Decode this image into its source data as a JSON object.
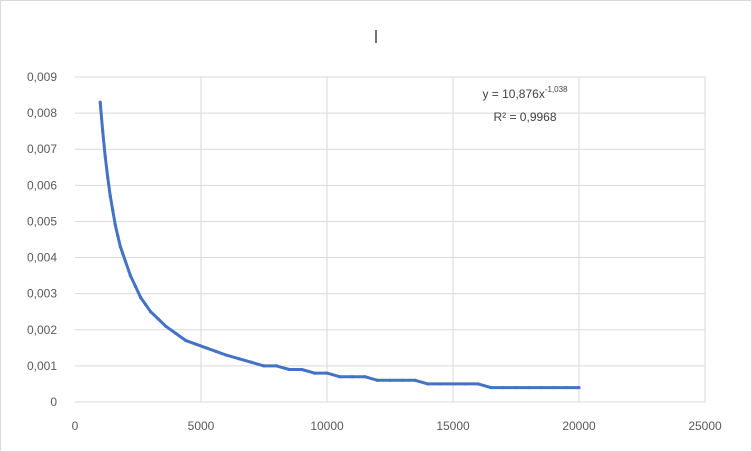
{
  "chart_data": {
    "type": "scatter",
    "title": "I",
    "xlabel": "",
    "ylabel": "",
    "xlim": [
      0,
      25000
    ],
    "ylim": [
      0,
      0.009
    ],
    "x_ticks": [
      "0",
      "5000",
      "10000",
      "15000",
      "20000",
      "25000"
    ],
    "y_ticks": [
      "0",
      "0,001",
      "0,002",
      "0,003",
      "0,004",
      "0,005",
      "0,006",
      "0,007",
      "0,008",
      "0,009"
    ],
    "grid": true,
    "legend": "none",
    "series_color": "#4472c4",
    "series": [
      {
        "x": [
          1000,
          1100,
          1200,
          1300,
          1400,
          1500,
          1600,
          1700,
          1800,
          1900,
          2000,
          2200,
          2400,
          2600,
          2800,
          3000,
          3300,
          3600,
          4000,
          4400,
          4800,
          5200,
          5600,
          6000,
          6500,
          7000,
          7500,
          8000,
          8500,
          9000,
          9500,
          10000,
          10500,
          11000,
          11500,
          12000,
          12500,
          13000,
          13500,
          14000,
          14500,
          15000,
          15500,
          16000,
          16500,
          17000,
          17500,
          18000,
          18500,
          19000,
          19500,
          20000
        ],
        "y": [
          0.0083,
          0.0075,
          0.0068,
          0.0062,
          0.0057,
          0.0053,
          0.0049,
          0.0046,
          0.0043,
          0.0041,
          0.0039,
          0.0035,
          0.0032,
          0.0029,
          0.0027,
          0.0025,
          0.0023,
          0.0021,
          0.0019,
          0.0017,
          0.0016,
          0.0015,
          0.0014,
          0.0013,
          0.0012,
          0.0011,
          0.001,
          0.001,
          0.0009,
          0.0009,
          0.0008,
          0.0008,
          0.0007,
          0.0007,
          0.0007,
          0.0006,
          0.0006,
          0.0006,
          0.0006,
          0.0005,
          0.0005,
          0.0005,
          0.0005,
          0.0005,
          0.0004,
          0.0004,
          0.0004,
          0.0004,
          0.0004,
          0.0004,
          0.0004,
          0.0004
        ]
      }
    ],
    "trendline": {
      "type": "power",
      "a": 10.876,
      "b": -1.038,
      "equation_prefix": "y = 10,876x",
      "equation_exponent": "-1,038",
      "r2_label": "R² = 0,9968"
    }
  }
}
